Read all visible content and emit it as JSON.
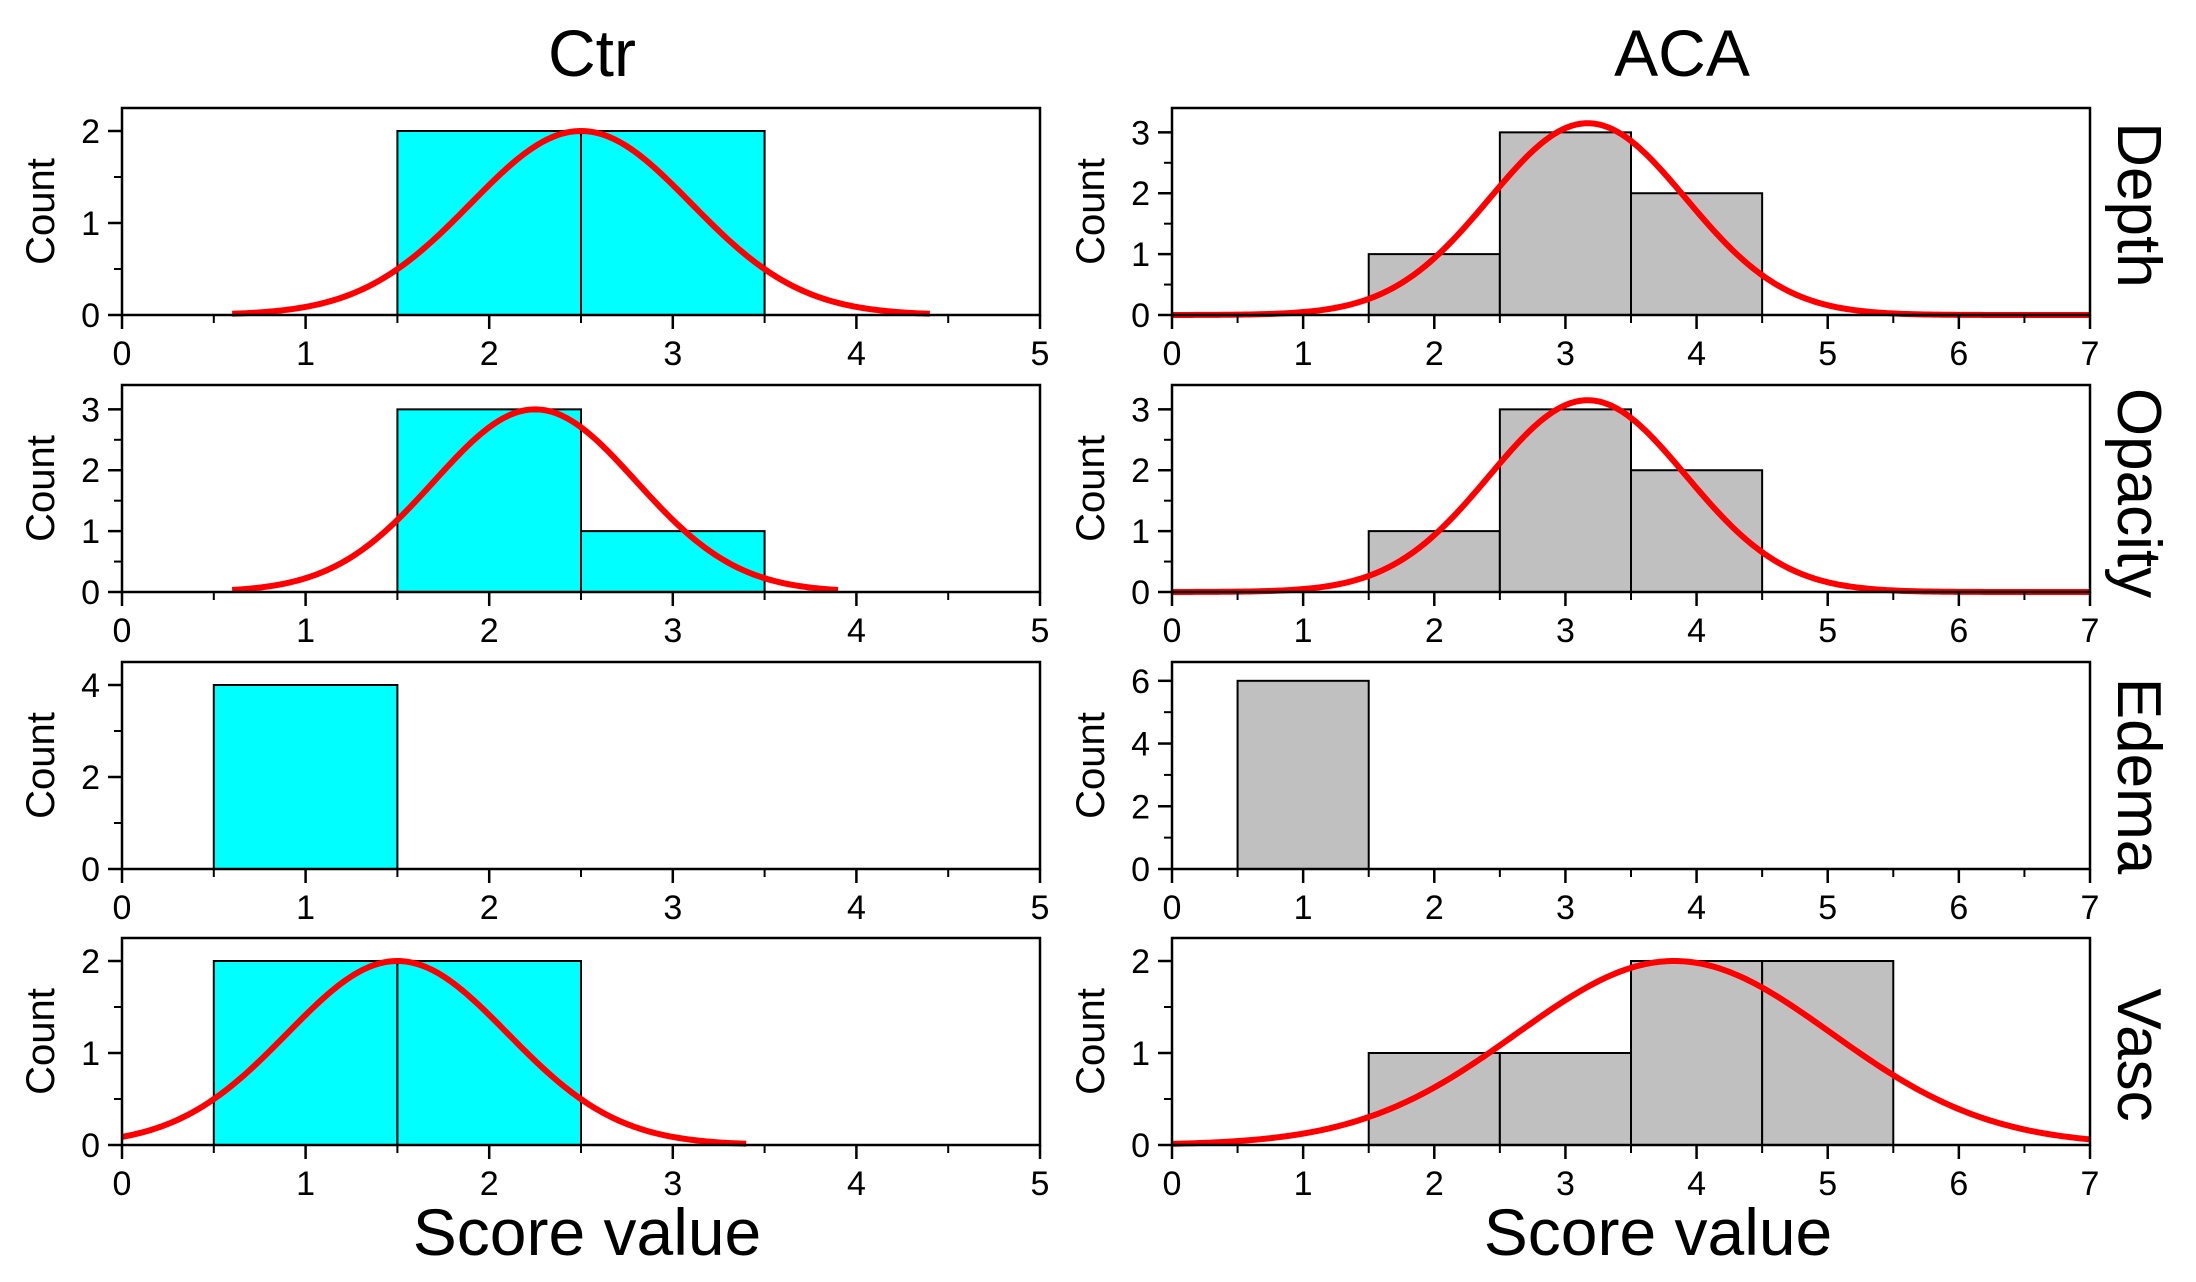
{
  "columns": [
    "Ctr",
    "ACA"
  ],
  "rows": [
    "Depth",
    "Opacity",
    "Edema",
    "Vasc"
  ],
  "xlabel": "Score value",
  "ylabel": "Count",
  "colors": {
    "Ctr": "#00ffff",
    "ACA": "#c0c0c0",
    "fit": "#ff0000",
    "axis": "#000000"
  },
  "chart_data": [
    {
      "type": "bar",
      "group": "Ctr",
      "metric": "Depth",
      "bin_width": 1,
      "bins": [
        {
          "x": 2,
          "count": 2
        },
        {
          "x": 3,
          "count": 2
        }
      ],
      "xlim": [
        0,
        5
      ],
      "ylim": [
        0,
        2.25
      ],
      "yticks": [
        0,
        1,
        2
      ],
      "xticks": [
        0,
        1,
        2,
        3,
        4,
        5
      ],
      "fit": {
        "mean": 2.5,
        "sd": 0.6,
        "peak": 2,
        "range": [
          0.6,
          4.4
        ]
      }
    },
    {
      "type": "bar",
      "group": "ACA",
      "metric": "Depth",
      "bin_width": 1,
      "bins": [
        {
          "x": 2,
          "count": 1
        },
        {
          "x": 3,
          "count": 3
        },
        {
          "x": 4,
          "count": 2
        }
      ],
      "xlim": [
        0,
        7
      ],
      "ylim": [
        0,
        3.4
      ],
      "yticks": [
        0,
        1,
        2,
        3
      ],
      "xticks": [
        0,
        1,
        2,
        3,
        4,
        5,
        6,
        7
      ],
      "fit": {
        "mean": 3.17,
        "sd": 0.75,
        "peak": 3.15,
        "range": [
          0,
          7
        ]
      }
    },
    {
      "type": "bar",
      "group": "Ctr",
      "metric": "Opacity",
      "bin_width": 1,
      "bins": [
        {
          "x": 2,
          "count": 3
        },
        {
          "x": 3,
          "count": 1
        }
      ],
      "xlim": [
        0,
        5
      ],
      "ylim": [
        0,
        3.4
      ],
      "yticks": [
        0,
        1,
        2,
        3
      ],
      "xticks": [
        0,
        1,
        2,
        3,
        4,
        5
      ],
      "fit": {
        "mean": 2.25,
        "sd": 0.55,
        "peak": 3,
        "range": [
          0.6,
          3.9
        ]
      }
    },
    {
      "type": "bar",
      "group": "ACA",
      "metric": "Opacity",
      "bin_width": 1,
      "bins": [
        {
          "x": 2,
          "count": 1
        },
        {
          "x": 3,
          "count": 3
        },
        {
          "x": 4,
          "count": 2
        }
      ],
      "xlim": [
        0,
        7
      ],
      "ylim": [
        0,
        3.4
      ],
      "yticks": [
        0,
        1,
        2,
        3
      ],
      "xticks": [
        0,
        1,
        2,
        3,
        4,
        5,
        6,
        7
      ],
      "fit": {
        "mean": 3.17,
        "sd": 0.75,
        "peak": 3.15,
        "range": [
          0,
          7
        ]
      }
    },
    {
      "type": "bar",
      "group": "Ctr",
      "metric": "Edema",
      "bin_width": 1,
      "bins": [
        {
          "x": 1,
          "count": 4
        }
      ],
      "xlim": [
        0,
        5
      ],
      "ylim": [
        0,
        4.5
      ],
      "yticks": [
        0,
        2,
        4
      ],
      "xticks": [
        0,
        1,
        2,
        3,
        4,
        5
      ],
      "fit": null
    },
    {
      "type": "bar",
      "group": "ACA",
      "metric": "Edema",
      "bin_width": 1,
      "bins": [
        {
          "x": 1,
          "count": 6
        }
      ],
      "xlim": [
        0,
        7
      ],
      "ylim": [
        0,
        6.6
      ],
      "yticks": [
        0,
        2,
        4,
        6
      ],
      "xticks": [
        0,
        1,
        2,
        3,
        4,
        5,
        6,
        7
      ],
      "fit": null
    },
    {
      "type": "bar",
      "group": "Ctr",
      "metric": "Vasc",
      "bin_width": 1,
      "bins": [
        {
          "x": 1,
          "count": 2
        },
        {
          "x": 2,
          "count": 2
        }
      ],
      "xlim": [
        0,
        5
      ],
      "ylim": [
        0,
        2.25
      ],
      "yticks": [
        0,
        1,
        2
      ],
      "xticks": [
        0,
        1,
        2,
        3,
        4,
        5
      ],
      "fit": {
        "mean": 1.5,
        "sd": 0.6,
        "peak": 2,
        "range": [
          0,
          3.4
        ]
      }
    },
    {
      "type": "bar",
      "group": "ACA",
      "metric": "Vasc",
      "bin_width": 1,
      "bins": [
        {
          "x": 2,
          "count": 1
        },
        {
          "x": 3,
          "count": 1
        },
        {
          "x": 4,
          "count": 2
        },
        {
          "x": 5,
          "count": 2
        }
      ],
      "xlim": [
        0,
        7
      ],
      "ylim": [
        0,
        2.25
      ],
      "yticks": [
        0,
        1,
        2
      ],
      "xticks": [
        0,
        1,
        2,
        3,
        4,
        5,
        6,
        7
      ],
      "fit": {
        "mean": 3.83,
        "sd": 1.2,
        "peak": 2,
        "range": [
          0,
          7
        ]
      }
    }
  ]
}
